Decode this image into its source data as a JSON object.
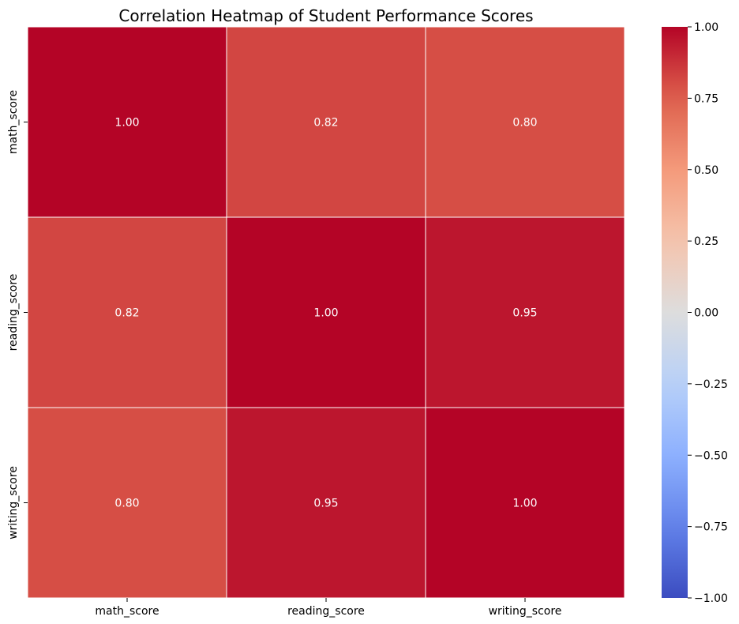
{
  "chart_data": {
    "type": "heatmap",
    "title": "Correlation Heatmap of Student Performance Scores",
    "xlabel": "",
    "ylabel": "",
    "rows": [
      "math_score",
      "reading_score",
      "writing_score"
    ],
    "cols": [
      "math_score",
      "reading_score",
      "writing_score"
    ],
    "values": [
      [
        1.0,
        0.82,
        0.8
      ],
      [
        0.82,
        1.0,
        0.95
      ],
      [
        0.8,
        0.95,
        1.0
      ]
    ],
    "cell_labels": [
      [
        "1.00",
        "0.82",
        "0.80"
      ],
      [
        "0.82",
        "1.00",
        "0.95"
      ],
      [
        "0.80",
        "0.95",
        "1.00"
      ]
    ],
    "colormap": "coolwarm",
    "vmin": -1.0,
    "vmax": 1.0,
    "colorbar_ticks": [
      1.0,
      0.75,
      0.5,
      0.25,
      0.0,
      -0.25,
      -0.5,
      -0.75,
      -1.0
    ],
    "colorbar_tick_labels": [
      "1.00",
      "0.75",
      "0.50",
      "0.25",
      "0.00",
      "−0.25",
      "−0.50",
      "−0.75",
      "−1.00"
    ]
  }
}
